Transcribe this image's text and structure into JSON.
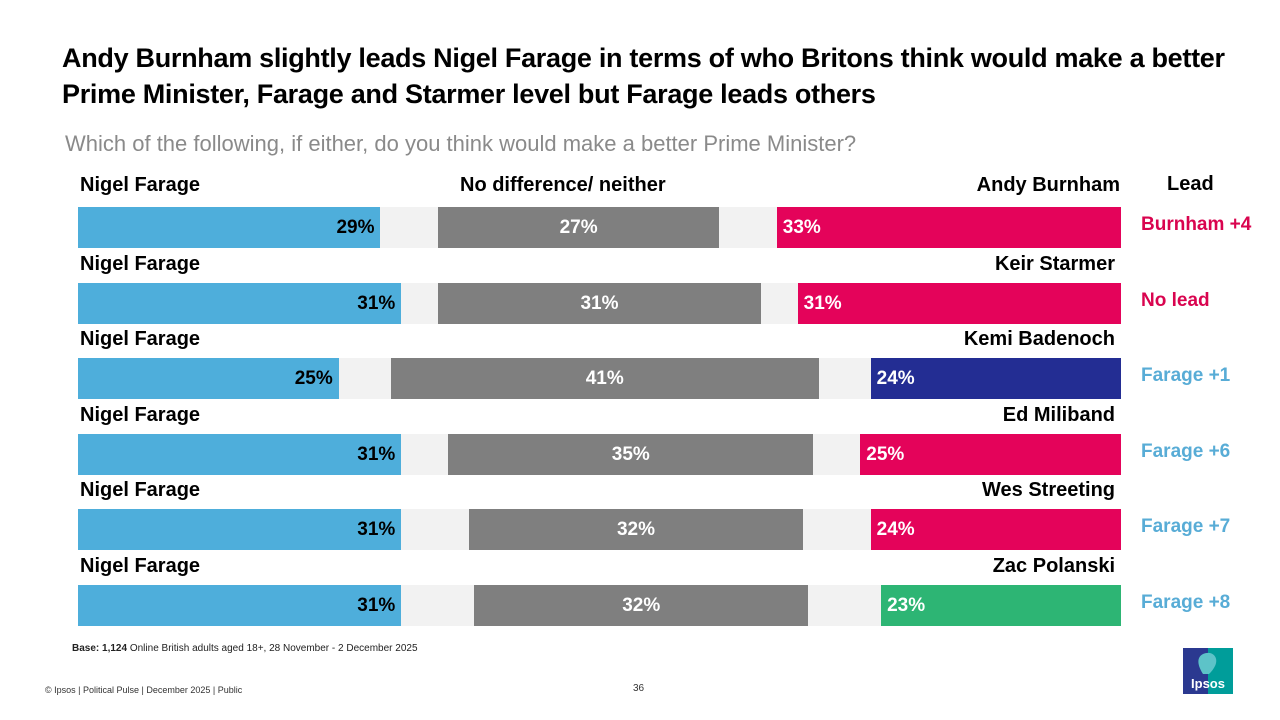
{
  "title": "Andy Burnham slightly leads Nigel Farage in terms of who Britons think would make a better Prime Minister, Farage and Starmer level but Farage leads others",
  "subtitle": "Which of the following, if either, do you think would make a better Prime Minister?",
  "base": {
    "label": "Base:",
    "n": "1,124",
    "text": "Online British adults aged 18+,  28 November - 2 December 2025"
  },
  "footer": "© Ipsos | Political Pulse | December 2025 | Public",
  "page_number": "36",
  "logo_text": "Ipsos",
  "colors": {
    "farage": "#4eaedb",
    "neither": "#7f7f7f",
    "labour": "#e4035a",
    "conservative": "#232d93",
    "green": "#2db574",
    "gap": "#f2f2f2",
    "lead_labour": "#d9044f",
    "lead_farage": "#58acd6"
  },
  "chart_data": {
    "type": "bar",
    "orientation": "horizontal-stacked",
    "headers": {
      "left": "Nigel Farage",
      "middle": "No difference/ neither",
      "right": "Andy Burnham",
      "lead": "Lead"
    },
    "rows": [
      {
        "left": "Nigel Farage",
        "right": "Andy Burnham",
        "farage": 29,
        "neither": 27,
        "other": 33,
        "other_color": "#e4035a",
        "lead": "Burnham +4",
        "lead_color": "#d9044f"
      },
      {
        "left": "Nigel Farage",
        "right": "Keir Starmer",
        "farage": 31,
        "neither": 31,
        "other": 31,
        "other_color": "#e4035a",
        "lead": "No lead",
        "lead_color": "#d9044f"
      },
      {
        "left": "Nigel Farage",
        "right": "Kemi Badenoch",
        "farage": 25,
        "neither": 41,
        "other": 24,
        "other_color": "#232d93",
        "lead": "Farage +1",
        "lead_color": "#58acd6"
      },
      {
        "left": "Nigel Farage",
        "right": "Ed Miliband",
        "farage": 31,
        "neither": 35,
        "other": 25,
        "other_color": "#e4035a",
        "lead": "Farage +6",
        "lead_color": "#58acd6"
      },
      {
        "left": "Nigel Farage",
        "right": "Wes Streeting",
        "farage": 31,
        "neither": 32,
        "other": 24,
        "other_color": "#e4035a",
        "lead": "Farage +7",
        "lead_color": "#58acd6"
      },
      {
        "left": "Nigel Farage",
        "right": "Zac Polanski",
        "farage": 31,
        "neither": 32,
        "other": 23,
        "other_color": "#2db574",
        "lead": "Farage +8",
        "lead_color": "#58acd6"
      }
    ],
    "unit": "%"
  }
}
